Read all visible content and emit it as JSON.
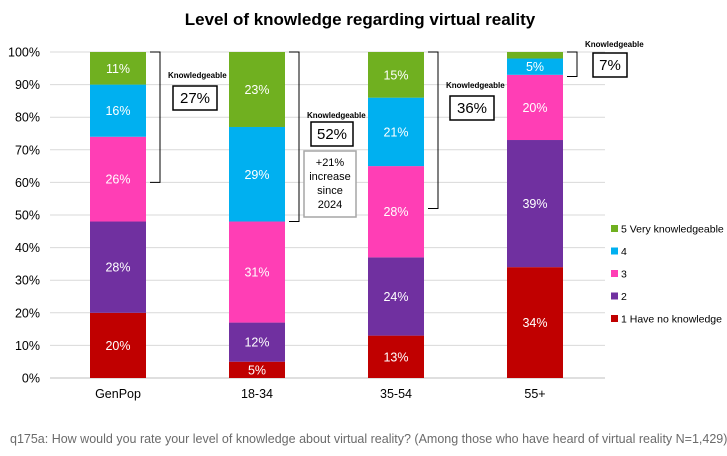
{
  "chart_data": {
    "type": "bar",
    "stacked": true,
    "title": "Level of knowledge regarding virtual reality",
    "categories": [
      "GenPop",
      "18-34",
      "35-54",
      "55+"
    ],
    "ylim": [
      0,
      100
    ],
    "ytick_labels": [
      "0%",
      "10%",
      "20%",
      "30%",
      "40%",
      "50%",
      "60%",
      "70%",
      "80%",
      "90%",
      "100%"
    ],
    "grid": true,
    "legend_position": "right",
    "series": [
      {
        "name": "1 Have no knowledge",
        "color": "#c00000",
        "values": [
          20,
          5,
          13,
          34
        ],
        "labels": [
          "20%",
          "5%",
          "13%",
          "34%"
        ]
      },
      {
        "name": "2",
        "color": "#7030a0",
        "values": [
          28,
          12,
          24,
          39
        ],
        "labels": [
          "28%",
          "12%",
          "24%",
          "39%"
        ]
      },
      {
        "name": "3",
        "color": "#ff3eb5",
        "values": [
          26,
          31,
          28,
          20
        ],
        "labels": [
          "26%",
          "31%",
          "28%",
          "20%"
        ]
      },
      {
        "name": "4",
        "color": "#00b0f0",
        "values": [
          16,
          29,
          21,
          5
        ],
        "labels": [
          "16%",
          "29%",
          "21%",
          "5%"
        ]
      },
      {
        "name": "5 Very knowledgeable",
        "color": "#70b020",
        "values": [
          11,
          23,
          15,
          2
        ],
        "labels": [
          "11%",
          "23%",
          "15%",
          ""
        ]
      }
    ],
    "annotations": [
      {
        "category": "GenPop",
        "caption": "Knowledgeable",
        "value": "27%"
      },
      {
        "category": "18-34",
        "caption": "Knowledgeable",
        "value": "52%",
        "note": [
          "+21%",
          "increase",
          "since",
          "2024"
        ]
      },
      {
        "category": "35-54",
        "caption": "Knowledgeable",
        "value": "36%"
      },
      {
        "category": "55+",
        "caption": "Knowledgeable",
        "value": "7%"
      }
    ]
  },
  "footnote": "q175a: How would you rate your level of knowledge about virtual reality? (Among those who have heard of virtual reality N=1,429)"
}
